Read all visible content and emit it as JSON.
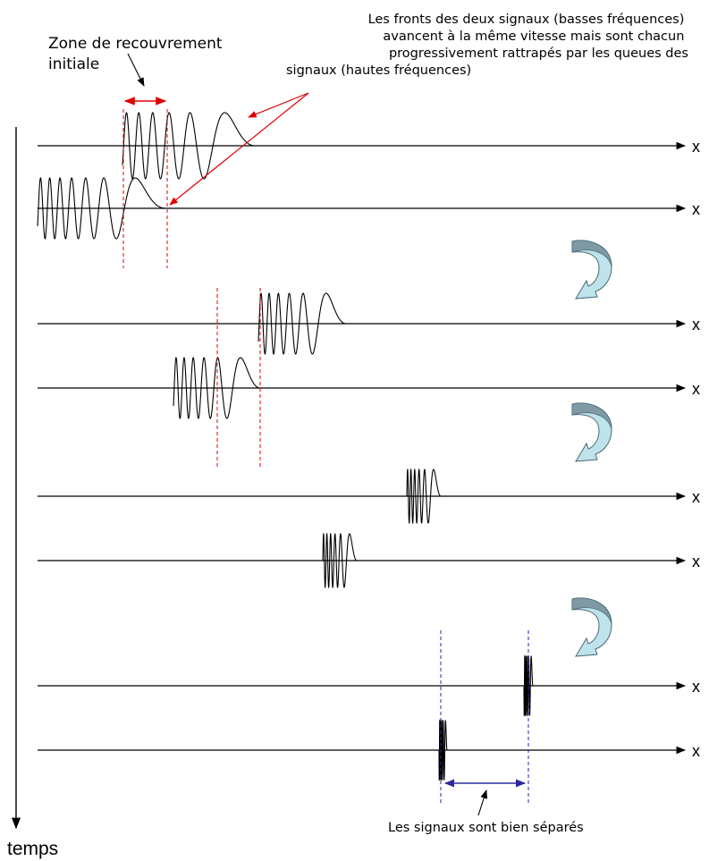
{
  "labels": {
    "overlap_zone": [
      "Zone de recouvrement",
      "initiale"
    ],
    "fronts_note": [
      "Les fronts des deux signaux (basses fréquences)",
      "avancent à la même vitesse mais sont chacun",
      "progressivement rattrapés par les queues des",
      "signaux (hautes fréquences)"
    ],
    "separated": "Les signaux sont bien séparés",
    "time_axis": "temps",
    "space_axis": "x"
  },
  "colors": {
    "axis": "#000000",
    "red_marker": "#e00000",
    "blue_marker": "#2a2aa0",
    "curved_arrow_fill": "#bfe3ea",
    "curved_arrow_stroke": "#4a6a78"
  },
  "icons": {
    "step_arrow": "curved-down-left-arrow"
  }
}
